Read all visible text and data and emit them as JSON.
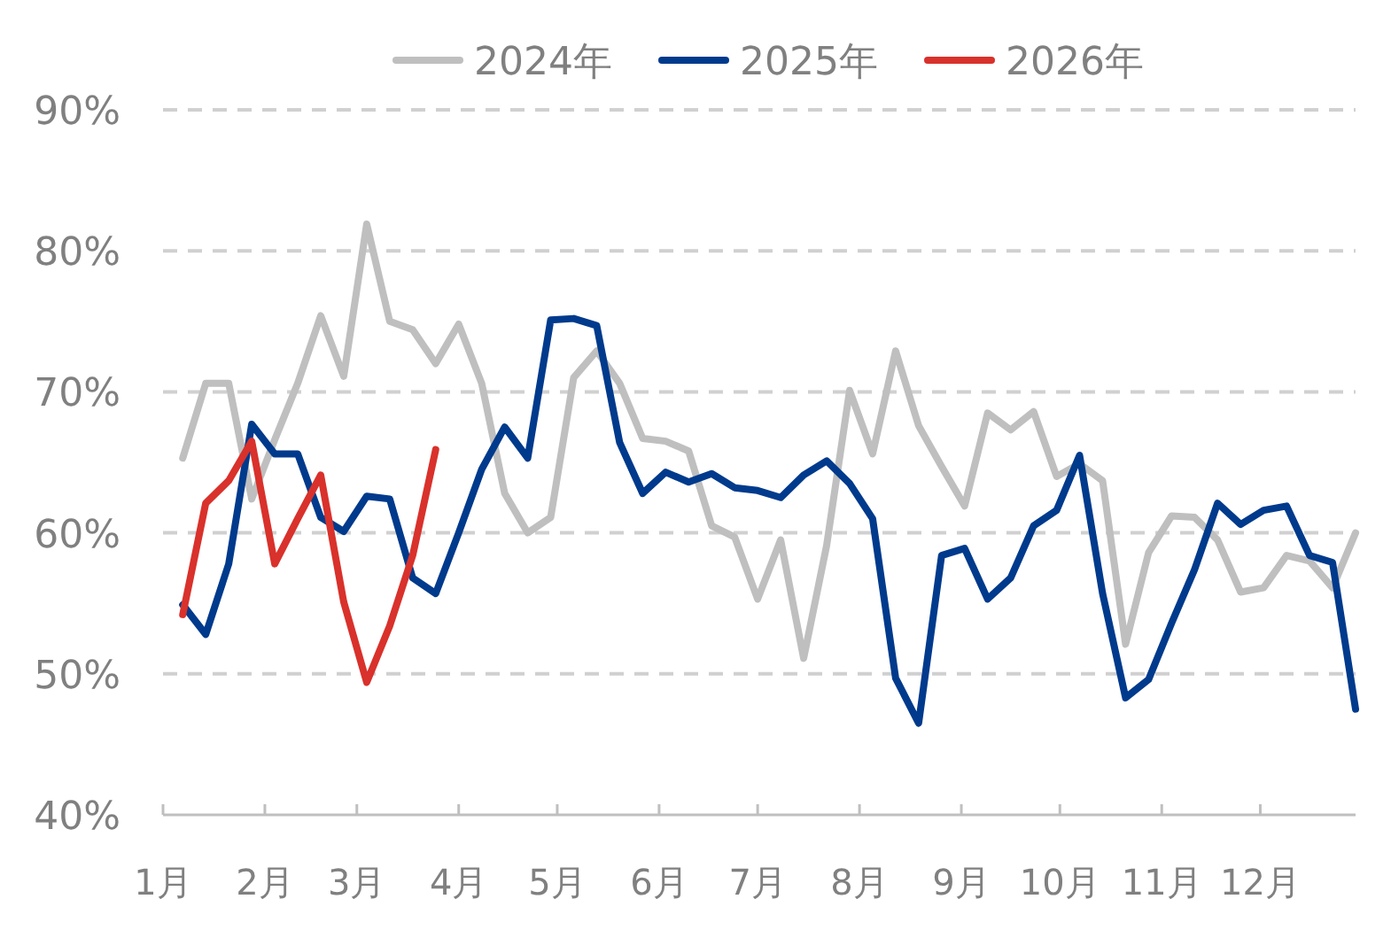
{
  "chart_data": {
    "type": "line",
    "x": [
      "--01-07",
      "--01-14",
      "--01-21",
      "--01-28",
      "--02-04",
      "--02-11",
      "--02-18",
      "--02-25",
      "--03-04",
      "--03-11",
      "--03-18",
      "--03-25",
      "--04-01",
      "--04-08",
      "--04-15",
      "--04-22",
      "--04-29",
      "--05-06",
      "--05-13",
      "--05-20",
      "--05-27",
      "--06-03",
      "--06-10",
      "--06-17",
      "--06-24",
      "--07-01",
      "--07-08",
      "--07-15",
      "--07-22",
      "--07-29",
      "--08-05",
      "--08-12",
      "--08-19",
      "--08-26",
      "--09-02",
      "--09-09",
      "--09-16",
      "--09-23",
      "--09-30",
      "--10-07",
      "--10-14",
      "--10-21",
      "--10-28",
      "--11-04",
      "--11-11",
      "--11-18",
      "--11-25",
      "--12-02",
      "--12-09",
      "--12-16",
      "--12-23",
      "--12-30"
    ],
    "series": [
      {
        "name": "2024年",
        "color": "#bfbfbf",
        "values": [
          65.3,
          70.6,
          70.6,
          62.4,
          66.6,
          70.6,
          75.4,
          71.1,
          81.9,
          75.0,
          74.4,
          72.0,
          74.8,
          70.6,
          62.8,
          60.0,
          61.1,
          71.0,
          72.9,
          70.6,
          66.7,
          66.5,
          65.8,
          60.5,
          59.7,
          55.3,
          59.5,
          51.1,
          59.1,
          70.1,
          65.6,
          72.9,
          67.6,
          64.7,
          61.9,
          68.5,
          67.3,
          68.6,
          64.0,
          64.9,
          63.7,
          52.1,
          58.6,
          61.2,
          61.1,
          59.5,
          55.8,
          56.1,
          58.4,
          58.0,
          56.1,
          60.0
        ]
      },
      {
        "name": "2025年",
        "color": "#003a8c",
        "values": [
          54.9,
          52.8,
          57.8,
          67.7,
          65.6,
          65.6,
          61.1,
          60.1,
          62.6,
          62.4,
          56.8,
          55.7,
          60.0,
          64.5,
          67.5,
          65.3,
          75.1,
          75.2,
          74.7,
          66.4,
          62.8,
          64.3,
          63.6,
          64.2,
          63.2,
          63.0,
          62.5,
          64.1,
          65.1,
          63.5,
          61.0,
          49.7,
          46.5,
          58.4,
          58.9,
          55.3,
          56.8,
          60.5,
          61.6,
          65.5,
          55.7,
          48.3,
          49.6,
          53.6,
          57.4,
          62.1,
          60.6,
          61.6,
          61.9,
          58.4,
          57.9,
          47.5
        ]
      },
      {
        "name": "2026年",
        "color": "#d9312b",
        "values": [
          54.2,
          62.1,
          63.7,
          66.5,
          57.8,
          61.0,
          64.1,
          55.1,
          49.4,
          53.4,
          58.4,
          65.9,
          null,
          null,
          null,
          null,
          null,
          null,
          null,
          null,
          null,
          null,
          null,
          null,
          null,
          null,
          null,
          null,
          null,
          null,
          null,
          null,
          null,
          null,
          null,
          null,
          null,
          null,
          null,
          null,
          null,
          null,
          null,
          null,
          null,
          null,
          null,
          null,
          null,
          null,
          null,
          null
        ]
      }
    ],
    "xlim": [
      "--01-01",
      "--12-30"
    ],
    "xticks": [
      {
        "value": "--01-01",
        "label": "1月"
      },
      {
        "value": "--02-01",
        "label": "2月"
      },
      {
        "value": "--03-01",
        "label": "3月"
      },
      {
        "value": "--04-01",
        "label": "4月"
      },
      {
        "value": "--05-01",
        "label": "5月"
      },
      {
        "value": "--06-01",
        "label": "6月"
      },
      {
        "value": "--07-01",
        "label": "7月"
      },
      {
        "value": "--08-01",
        "label": "8月"
      },
      {
        "value": "--09-01",
        "label": "9月"
      },
      {
        "value": "--10-01",
        "label": "10月"
      },
      {
        "value": "--11-01",
        "label": "11月"
      },
      {
        "value": "--12-01",
        "label": "12月"
      }
    ],
    "ylim": [
      40,
      90
    ],
    "yticks": [
      {
        "value": 40,
        "label": "40%"
      },
      {
        "value": 50,
        "label": "50%"
      },
      {
        "value": 60,
        "label": "60%"
      },
      {
        "value": 70,
        "label": "70%"
      },
      {
        "value": 80,
        "label": "80%"
      },
      {
        "value": 90,
        "label": "90%"
      }
    ],
    "grid": "y",
    "legend": "top",
    "marker": "none",
    "line_style": "solid"
  }
}
